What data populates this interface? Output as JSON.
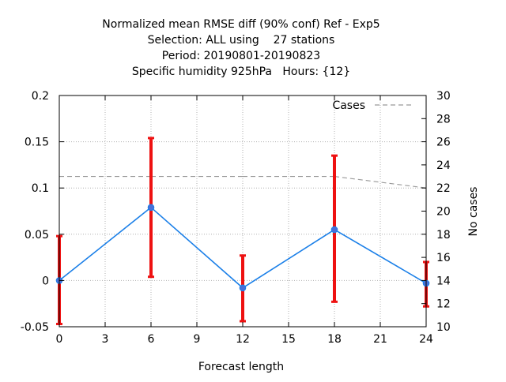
{
  "chart_data": {
    "type": "line",
    "title_lines": [
      "Normalized mean RMSE diff (90% conf) Ref - Exp5",
      "Selection: ALL using    27 stations",
      "Period: 20190801-20190823",
      "Specific humidity 925hPa   Hours: {12}"
    ],
    "xlabel": "Forecast length",
    "ylabel": "",
    "y2label": "No cases",
    "xlim": [
      0,
      24
    ],
    "ylim": [
      -0.05,
      0.2
    ],
    "y2lim": [
      10,
      30
    ],
    "x_ticks": [
      "0",
      "3",
      "6",
      "9",
      "12",
      "15",
      "18",
      "21",
      "24"
    ],
    "y_ticks": [
      "-0.05",
      "0",
      "0.05",
      "0.1",
      "0.15",
      "0.2"
    ],
    "y2_ticks": [
      "10",
      "12",
      "14",
      "16",
      "18",
      "20",
      "22",
      "24",
      "26",
      "28",
      "30"
    ],
    "grid": true,
    "legend_position": "top-right",
    "series": [
      {
        "values": [
          {
            "x": 0,
            "y": 0.0
          },
          {
            "x": 6,
            "y": 0.079
          },
          {
            "x": 12,
            "y": -0.008
          },
          {
            "x": 18,
            "y": 0.055
          },
          {
            "x": 24,
            "y": -0.003
          }
        ],
        "color": "#1a7fe8",
        "marker_color": "#4a6fd8"
      }
    ],
    "error_bars": {
      "color": "#ee1111",
      "ranges": [
        {
          "x": 0,
          "low": -0.047,
          "high": 0.048
        },
        {
          "x": 6,
          "low": 0.004,
          "high": 0.154
        },
        {
          "x": 12,
          "low": -0.044,
          "high": 0.027
        },
        {
          "x": 18,
          "low": -0.023,
          "high": 0.135
        },
        {
          "x": 24,
          "low": -0.028,
          "high": 0.02
        }
      ]
    },
    "cases": {
      "name": "Cases",
      "axis": "y2",
      "color": "#999999",
      "values": [
        {
          "x": 0,
          "y": 23
        },
        {
          "x": 6,
          "y": 23
        },
        {
          "x": 12,
          "y": 23
        },
        {
          "x": 18,
          "y": 23
        },
        {
          "x": 24,
          "y": 22
        }
      ]
    }
  }
}
